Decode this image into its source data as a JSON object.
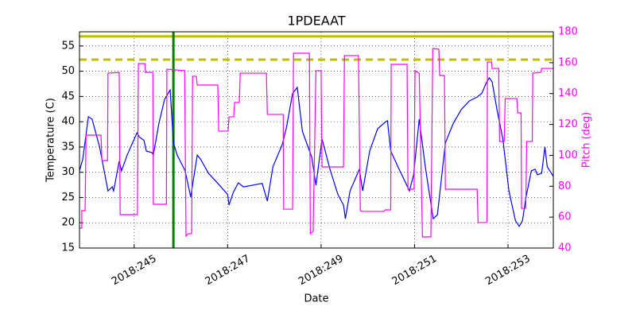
{
  "chart_data": {
    "type": "line",
    "title": "1PDEAAT",
    "x_label": "Date",
    "y_label": "Temperature (C)",
    "y2_label": "Pitch (deg)",
    "y2_color": "#ff00ff",
    "grid": true,
    "xlim": [
      243.83,
      253.97
    ],
    "xticks": [
      {
        "value": 245,
        "label": "2018:245"
      },
      {
        "value": 247,
        "label": "2018:247"
      },
      {
        "value": 249,
        "label": "2018:249"
      },
      {
        "value": 251,
        "label": "2018:251"
      },
      {
        "value": 253,
        "label": "2018:253"
      }
    ],
    "ylim": [
      15,
      57.8
    ],
    "yticks": [
      15,
      20,
      25,
      30,
      35,
      40,
      45,
      50,
      55
    ],
    "y2lim": [
      40,
      180
    ],
    "y2ticks": [
      40,
      60,
      80,
      100,
      120,
      140,
      160,
      180
    ],
    "hlines": [
      {
        "value": 56.9,
        "color": "#bfbf00",
        "style": "solid"
      },
      {
        "value": 52.3,
        "color": "#bfbf00",
        "style": "dashed"
      }
    ],
    "vlines": [
      {
        "value": 245.84,
        "color": "#008000"
      }
    ],
    "series": [
      {
        "color": "#0000ff",
        "x": [
          243.83,
          243.9,
          244.02,
          244.1,
          244.26,
          244.44,
          244.53,
          244.56,
          244.68,
          244.73,
          244.85,
          245.06,
          245.11,
          245.21,
          245.26,
          245.38,
          245.41,
          245.53,
          245.65,
          245.77,
          245.84,
          245.92,
          246.09,
          246.21,
          246.35,
          246.42,
          246.59,
          246.81,
          247.0,
          247.03,
          247.12,
          247.23,
          247.34,
          247.74,
          247.85,
          247.97,
          248.17,
          248.26,
          248.39,
          248.49,
          248.6,
          248.8,
          248.89,
          249.02,
          249.19,
          249.36,
          249.48,
          249.52,
          249.62,
          249.82,
          249.89,
          250.04,
          250.21,
          250.37,
          250.42,
          250.49,
          250.57,
          250.67,
          250.81,
          250.89,
          250.98,
          251.1,
          251.23,
          251.4,
          251.49,
          251.66,
          251.83,
          252.0,
          252.17,
          252.34,
          252.44,
          252.53,
          252.6,
          252.66,
          252.77,
          252.89,
          253.02,
          253.16,
          253.24,
          253.31,
          253.38,
          253.5,
          253.58,
          253.63,
          253.72,
          253.79,
          253.84,
          253.97
        ],
        "values": [
          30.3,
          32.6,
          41.0,
          40.5,
          35.0,
          26.3,
          27.1,
          26.3,
          32.2,
          30.3,
          33.4,
          37.8,
          37.0,
          36.3,
          34.2,
          33.9,
          33.4,
          39.7,
          44.4,
          46.3,
          35.8,
          33.4,
          30.3,
          25.1,
          33.4,
          32.6,
          29.8,
          27.6,
          25.6,
          23.5,
          26.0,
          27.9,
          27.1,
          27.8,
          24.3,
          31.1,
          35.5,
          38.9,
          45.6,
          46.8,
          38.1,
          33.0,
          27.4,
          36.6,
          30.6,
          25.6,
          23.5,
          20.8,
          26.3,
          30.6,
          26.3,
          34.2,
          38.6,
          39.9,
          40.2,
          34.2,
          32.6,
          30.6,
          27.9,
          26.3,
          29.5,
          40.5,
          31.1,
          20.8,
          21.6,
          35.8,
          39.7,
          42.4,
          44.1,
          44.9,
          45.6,
          47.6,
          48.7,
          47.9,
          42.1,
          36.6,
          26.3,
          20.4,
          19.3,
          20.4,
          24.8,
          30.3,
          30.6,
          29.5,
          29.8,
          35.0,
          31.1,
          29.2
        ]
      },
      {
        "color": "#ff00ff",
        "axis": "y2",
        "x": [
          243.83,
          243.88,
          243.88,
          243.95,
          243.97,
          244.29,
          244.31,
          244.43,
          244.44,
          244.68,
          244.7,
          245.07,
          245.09,
          245.23,
          245.24,
          245.4,
          245.41,
          245.69,
          245.7,
          246.08,
          246.11,
          246.16,
          246.23,
          246.25,
          246.33,
          246.35,
          246.79,
          246.81,
          247.01,
          247.03,
          247.13,
          247.15,
          247.25,
          247.27,
          247.83,
          247.85,
          248.19,
          248.2,
          248.39,
          248.41,
          248.75,
          248.77,
          248.83,
          248.89,
          249.0,
          249.02,
          249.48,
          249.5,
          249.8,
          249.84,
          249.87,
          250.35,
          250.37,
          250.49,
          250.5,
          250.84,
          250.86,
          250.99,
          251.01,
          251.1,
          251.17,
          251.35,
          251.39,
          251.52,
          251.54,
          251.64,
          251.66,
          252.34,
          252.36,
          252.55,
          252.56,
          252.65,
          252.66,
          252.8,
          252.82,
          252.92,
          252.94,
          253.19,
          253.21,
          253.28,
          253.29,
          253.38,
          253.4,
          253.52,
          253.53,
          253.7,
          253.72,
          253.97
        ],
        "values": [
          52.9,
          52.9,
          64.2,
          64.2,
          113.1,
          113.1,
          96.6,
          96.6,
          153.2,
          153.7,
          61.6,
          61.6,
          159.4,
          159.4,
          153.7,
          153.7,
          68.3,
          68.3,
          155.8,
          154.8,
          47.7,
          49.3,
          49.3,
          151.2,
          151.2,
          145.5,
          145.5,
          115.7,
          115.7,
          124.9,
          124.9,
          134.2,
          134.2,
          153.2,
          153.2,
          126.5,
          126.5,
          65.2,
          65.2,
          166.1,
          166.1,
          49.3,
          50.8,
          154.8,
          154.8,
          92.5,
          92.5,
          164.6,
          164.6,
          64.2,
          63.7,
          63.7,
          64.7,
          64.7,
          158.9,
          158.9,
          78.1,
          78.1,
          154.8,
          153.2,
          47.2,
          47.2,
          169.2,
          168.7,
          151.7,
          151.7,
          78.1,
          78.1,
          56.5,
          56.5,
          160.4,
          160.4,
          156.3,
          156.3,
          109.0,
          109.0,
          136.8,
          136.8,
          127.5,
          127.5,
          65.7,
          65.7,
          109.0,
          109.0,
          153.2,
          153.7,
          156.3,
          156.3
        ]
      }
    ]
  }
}
